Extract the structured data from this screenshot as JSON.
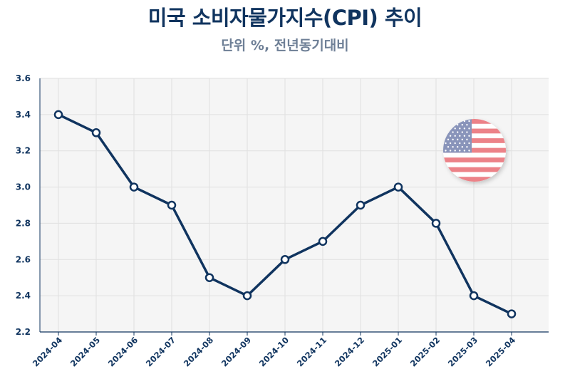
{
  "title": "미국 소비자물가지수(CPI) 추이",
  "subtitle": "단위 %, 전년동기대비",
  "chart_data": {
    "type": "line",
    "title": "미국 소비자물가지수(CPI) 추이",
    "subtitle": "단위 %, 전년동기대비",
    "xlabel": "",
    "ylabel": "",
    "categories": [
      "2024-04",
      "2024-05",
      "2024-06",
      "2024-07",
      "2024-08",
      "2024-09",
      "2024-10",
      "2024-11",
      "2024-12",
      "2025-01",
      "2025-02",
      "2025-03",
      "2025-04"
    ],
    "series": [
      {
        "values": [
          3.4,
          3.3,
          3.0,
          2.9,
          2.5,
          2.4,
          2.6,
          2.7,
          2.9,
          3.0,
          2.8,
          2.4,
          2.3
        ]
      }
    ],
    "ylim": [
      2.2,
      3.6
    ],
    "yticks": [
      "2.2",
      "2.4",
      "2.6",
      "2.8",
      "3.0",
      "3.2",
      "3.4",
      "3.6"
    ],
    "grid": true,
    "legend": "none",
    "colors": {
      "line": "#10345f",
      "marker_fill": "#ffffff",
      "plot_bg": "#f5f5f5",
      "grid": "#e0e0e0",
      "axis": "#10345f",
      "tick_text": "#10345f"
    }
  },
  "decoration": {
    "icon": "us-flag-icon"
  }
}
